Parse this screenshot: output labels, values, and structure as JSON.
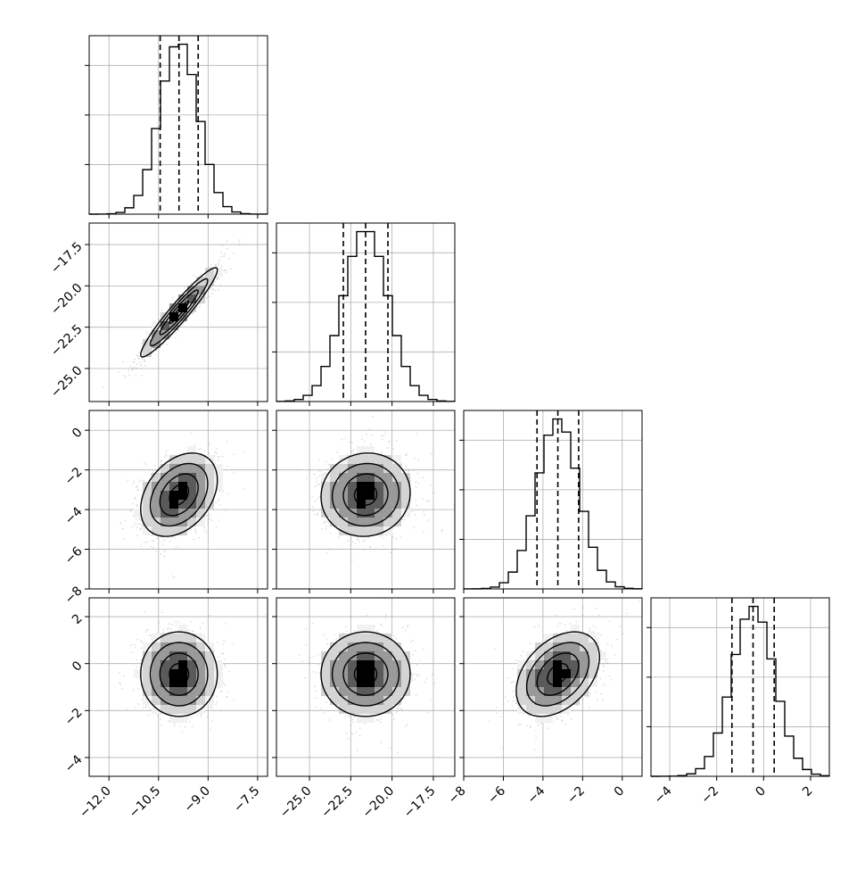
{
  "chart_data": {
    "type": "corner",
    "n_params": 4,
    "bins": 20,
    "levels": [
      0.118,
      0.393,
      0.675,
      0.865
    ],
    "colors": {
      "line": "#000000",
      "grid": "#b0b0b0",
      "points": "#8c8c8c"
    },
    "params": [
      {
        "mean": -9.88,
        "std": 0.58,
        "range": [
          -12.6,
          -7.2
        ],
        "quantiles": [
          -10.45,
          -9.88,
          -9.3
        ],
        "ticks": [
          -12.0,
          -10.5,
          -9.0,
          -7.5
        ],
        "tick_labels": [
          "−12.0",
          "−10.5",
          "−9.0",
          "−7.5"
        ]
      },
      {
        "mean": -21.6,
        "std": 1.35,
        "range": [
          -27.0,
          -16.2
        ],
        "quantiles": [
          -22.95,
          -21.6,
          -20.25
        ],
        "ticks": [
          -25.0,
          -22.5,
          -20.0,
          -17.5
        ],
        "tick_labels": [
          "−25.0",
          "−22.5",
          "−20.0",
          "−17.5"
        ]
      },
      {
        "mean": -3.25,
        "std": 1.05,
        "range": [
          -8.0,
          1.0
        ],
        "quantiles": [
          -4.3,
          -3.25,
          -2.2
        ],
        "ticks": [
          -8,
          -6,
          -4,
          -2,
          0
        ],
        "tick_labels": [
          "−8",
          "−6",
          "−4",
          "−2",
          "0"
        ]
      },
      {
        "mean": -0.45,
        "std": 0.9,
        "range": [
          -4.8,
          2.8
        ],
        "quantiles": [
          -1.35,
          -0.45,
          0.45
        ],
        "ticks": [
          -4,
          -2,
          0,
          2
        ],
        "tick_labels": [
          "−4",
          "−2",
          "0",
          "2"
        ]
      }
    ],
    "correlations": [
      {
        "pair": [
          1,
          0
        ],
        "rho": 0.95
      },
      {
        "pair": [
          2,
          0
        ],
        "rho": 0.35
      },
      {
        "pair": [
          2,
          1
        ],
        "rho": 0.05
      },
      {
        "pair": [
          3,
          0
        ],
        "rho": 0.0
      },
      {
        "pair": [
          3,
          1
        ],
        "rho": 0.0
      },
      {
        "pair": [
          3,
          2
        ],
        "rho": 0.4
      }
    ]
  }
}
